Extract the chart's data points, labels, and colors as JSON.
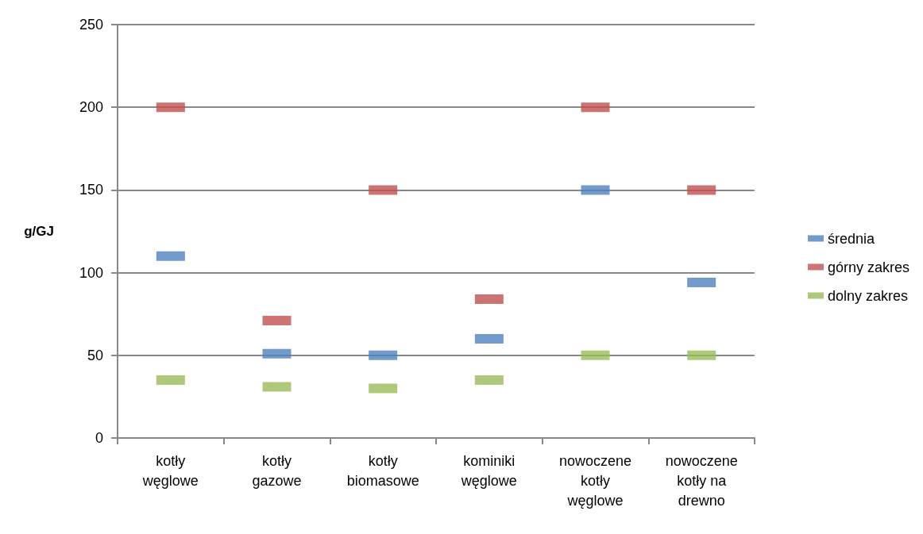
{
  "chart_data": {
    "type": "scatter",
    "ylabel": "g/GJ",
    "categories": [
      "kotły\nwęglowe",
      "kotły\ngazowe",
      "kotły\nbiomasowe",
      "kominiki\nwęglowe",
      "nowoczene\nkotły\nwęglowe",
      "nowoczene\nkotły na\ndrewno"
    ],
    "series": [
      {
        "name": "średnia",
        "color": "#4f81bd",
        "values": [
          110,
          51,
          50,
          60,
          150,
          94
        ]
      },
      {
        "name": "górny zakres",
        "color": "#c0504d",
        "values": [
          200,
          71,
          150,
          84,
          200,
          150
        ]
      },
      {
        "name": "dolny zakres",
        "color": "#9bbb59",
        "values": [
          35,
          31,
          30,
          35,
          50,
          50
        ]
      }
    ],
    "ylim": [
      0,
      250
    ],
    "yticks": [
      0,
      50,
      100,
      150,
      200,
      250
    ],
    "grid": "y",
    "legend": "right",
    "marker": "square"
  }
}
